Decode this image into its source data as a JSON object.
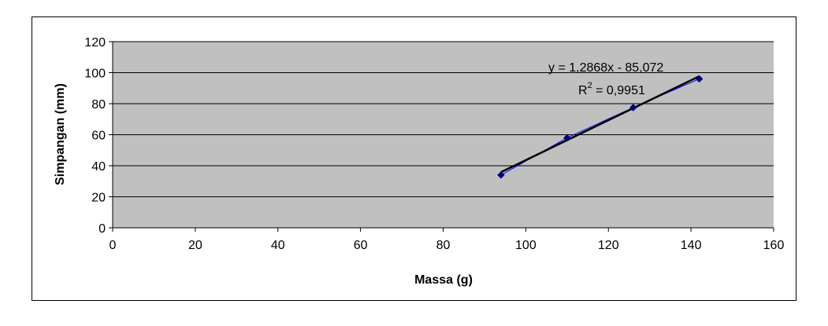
{
  "chart_data": {
    "type": "scatter",
    "title": "",
    "xlabel": "Massa (g)",
    "ylabel": "Simpangan (mm)",
    "xlim": [
      0,
      160
    ],
    "ylim": [
      0,
      120
    ],
    "xticks": [
      0,
      20,
      40,
      60,
      80,
      100,
      120,
      140,
      160
    ],
    "yticks": [
      0,
      20,
      40,
      60,
      80,
      100,
      120
    ],
    "grid": "horizontal",
    "plot_background": "#c0c0c0",
    "series": [
      {
        "marker_color": "#000080",
        "line_color": "#0000ff",
        "points": [
          {
            "x": 94,
            "y": 34
          },
          {
            "x": 110,
            "y": 58
          },
          {
            "x": 126,
            "y": 77.5
          },
          {
            "x": 142,
            "y": 96
          }
        ]
      }
    ],
    "trendline": {
      "slope": 1.2868,
      "intercept": -85.072,
      "x_range": [
        94,
        142
      ],
      "color": "#000000",
      "equation": "y = 1,2868x - 85,072",
      "r2_prefix": "R",
      "r2_sup": "2",
      "r2_value": " = 0,9951"
    }
  }
}
